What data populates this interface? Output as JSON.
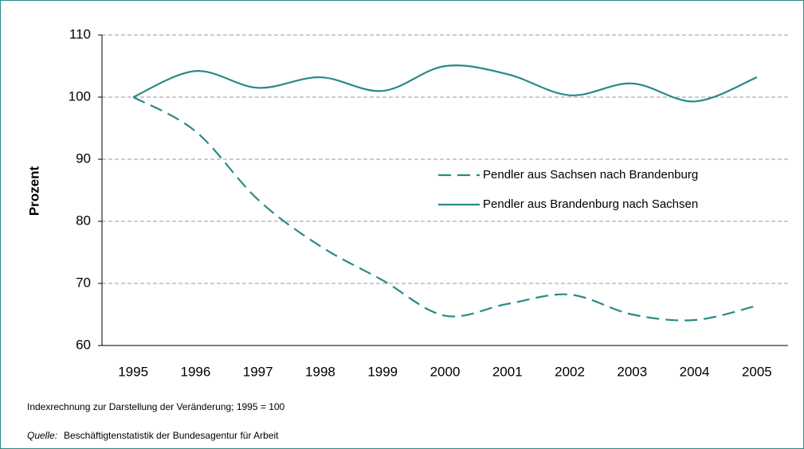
{
  "chart_data": {
    "type": "line",
    "y_label": "Prozent",
    "categories": [
      "1995",
      "1996",
      "1997",
      "1998",
      "1999",
      "2000",
      "2001",
      "2002",
      "2003",
      "2004",
      "2005"
    ],
    "series": [
      {
        "name": "Pendler aus Sachsen nach Brandenburg",
        "color": "#2a8a86",
        "dashed": true,
        "values": [
          100,
          94.5,
          83.5,
          76,
          70.5,
          64.8,
          66.7,
          68.2,
          65,
          64.1,
          66.4
        ]
      },
      {
        "name": "Pendler aus Brandenburg nach Sachsen",
        "color": "#2a8a86",
        "dashed": false,
        "values": [
          100,
          104.2,
          101.5,
          103.2,
          101,
          105,
          103.7,
          100.3,
          102.2,
          99.3,
          103.2
        ]
      }
    ],
    "ylim": [
      60,
      110
    ],
    "yticks": [
      60,
      70,
      80,
      90,
      100,
      110
    ],
    "grid": true,
    "smooth": true,
    "note": "Indexrechnung zur Darstellung der Veränderung; 1995 = 100",
    "source_label": "Quelle:",
    "source": "Beschäftigtenstatistik der Bundesagentur für Arbeit"
  }
}
